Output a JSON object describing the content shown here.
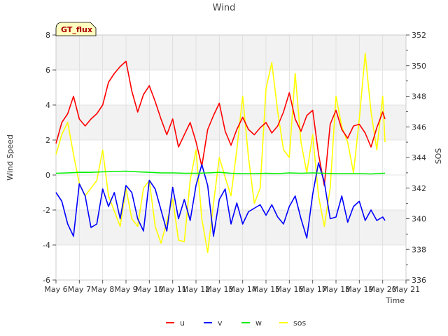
{
  "chart_data": {
    "type": "line",
    "title": "Wind",
    "badge": "GT_flux",
    "xlabel": "Time",
    "ylabel": "Wind Speed",
    "y2label": "SOS",
    "xlim": [
      6,
      21
    ],
    "ylim": [
      -6,
      8
    ],
    "y2lim": [
      336,
      352
    ],
    "x_ticks": [
      {
        "v": 6,
        "label": "May 6"
      },
      {
        "v": 7,
        "label": "May 7"
      },
      {
        "v": 8,
        "label": "May 8"
      },
      {
        "v": 9,
        "label": "May 9"
      },
      {
        "v": 10,
        "label": "May 10"
      },
      {
        "v": 11,
        "label": "May 11"
      },
      {
        "v": 12,
        "label": "May 12"
      },
      {
        "v": 13,
        "label": "May 13"
      },
      {
        "v": 14,
        "label": "May 14"
      },
      {
        "v": 15,
        "label": "May 15"
      },
      {
        "v": 16,
        "label": "May 16"
      },
      {
        "v": 17,
        "label": "May 17"
      },
      {
        "v": 18,
        "label": "May 18"
      },
      {
        "v": 19,
        "label": "May 19"
      },
      {
        "v": 20,
        "label": "May 20"
      },
      {
        "v": 21,
        "label": "May 21"
      }
    ],
    "y_ticks": [
      -6,
      -4,
      -2,
      0,
      2,
      4,
      6,
      8
    ],
    "y_tick_labels": [
      "-6",
      "-4",
      "-2",
      "0",
      "2",
      "4",
      "6",
      "8"
    ],
    "y2_ticks": [
      336,
      338,
      340,
      342,
      344,
      346,
      348,
      350,
      352
    ],
    "y2_tick_labels": [
      "336",
      "338",
      "340",
      "342",
      "344",
      "346",
      "348",
      "350",
      "352"
    ],
    "bands": [
      [
        -4,
        -2
      ],
      [
        2,
        4
      ],
      [
        6,
        8
      ]
    ],
    "grid": true,
    "legend_position": "bottom-center",
    "series": [
      {
        "name": "u",
        "axis": "left",
        "color": "#ff0000",
        "x": [
          6.0,
          6.25,
          6.5,
          6.75,
          7.0,
          7.25,
          7.5,
          7.75,
          8.0,
          8.25,
          8.5,
          8.75,
          9.0,
          9.25,
          9.5,
          9.75,
          10.0,
          10.25,
          10.5,
          10.75,
          11.0,
          11.25,
          11.5,
          11.75,
          12.0,
          12.25,
          12.5,
          12.75,
          13.0,
          13.25,
          13.5,
          13.75,
          14.0,
          14.25,
          14.5,
          14.75,
          15.0,
          15.25,
          15.5,
          15.75,
          16.0,
          16.25,
          16.5,
          16.75,
          17.0,
          17.25,
          17.5,
          17.75,
          18.0,
          18.25,
          18.5,
          18.75,
          19.0,
          19.25,
          19.5,
          19.75,
          20.0,
          20.1
        ],
        "y": [
          1.8,
          3.0,
          3.5,
          4.5,
          3.2,
          2.8,
          3.2,
          3.5,
          4.0,
          5.3,
          5.8,
          6.2,
          6.5,
          4.8,
          3.6,
          4.6,
          5.1,
          4.2,
          3.2,
          2.3,
          3.2,
          1.6,
          2.3,
          3.0,
          1.9,
          0.5,
          2.6,
          3.4,
          4.1,
          2.5,
          1.7,
          2.6,
          3.3,
          2.6,
          2.3,
          2.7,
          3.0,
          2.4,
          2.8,
          3.6,
          4.7,
          3.2,
          2.5,
          3.4,
          3.7,
          1.2,
          -0.6,
          2.9,
          3.7,
          2.6,
          2.1,
          2.8,
          2.9,
          2.4,
          1.6,
          2.7,
          3.6,
          3.2
        ]
      },
      {
        "name": "v",
        "axis": "left",
        "color": "#0000ff",
        "x": [
          6.0,
          6.25,
          6.5,
          6.75,
          7.0,
          7.25,
          7.5,
          7.75,
          8.0,
          8.25,
          8.5,
          8.75,
          9.0,
          9.25,
          9.5,
          9.75,
          10.0,
          10.25,
          10.5,
          10.75,
          11.0,
          11.25,
          11.5,
          11.75,
          12.0,
          12.25,
          12.5,
          12.75,
          13.0,
          13.25,
          13.5,
          13.75,
          14.0,
          14.25,
          14.5,
          14.75,
          15.0,
          15.25,
          15.5,
          15.75,
          16.0,
          16.25,
          16.5,
          16.75,
          17.0,
          17.25,
          17.5,
          17.75,
          18.0,
          18.25,
          18.5,
          18.75,
          19.0,
          19.25,
          19.5,
          19.75,
          20.0,
          20.1
        ],
        "y": [
          -1.0,
          -1.5,
          -2.8,
          -3.5,
          -0.5,
          -1.2,
          -3.0,
          -2.8,
          -0.8,
          -1.8,
          -1.0,
          -2.5,
          -0.6,
          -1.0,
          -2.5,
          -3.2,
          -0.3,
          -0.8,
          -2.0,
          -3.2,
          -0.7,
          -2.5,
          -1.4,
          -2.6,
          -0.6,
          0.6,
          -0.6,
          -3.5,
          -1.4,
          -0.8,
          -2.8,
          -1.6,
          -2.8,
          -2.1,
          -1.9,
          -1.7,
          -2.3,
          -1.7,
          -2.4,
          -2.8,
          -1.8,
          -1.2,
          -2.5,
          -3.6,
          -1.1,
          0.7,
          -0.4,
          -2.5,
          -2.4,
          -1.2,
          -2.7,
          -1.8,
          -1.5,
          -2.6,
          -2.0,
          -2.6,
          -2.4,
          -2.6
        ]
      },
      {
        "name": "w",
        "axis": "left",
        "color": "#00ee00",
        "x": [
          6.0,
          6.5,
          7.0,
          7.5,
          8.0,
          8.5,
          9.0,
          9.5,
          10.0,
          10.5,
          11.0,
          11.5,
          12.0,
          12.5,
          13.0,
          13.5,
          14.0,
          14.5,
          15.0,
          15.5,
          16.0,
          16.5,
          17.0,
          17.5,
          18.0,
          18.5,
          19.0,
          19.5,
          20.0,
          20.1
        ],
        "y": [
          0.1,
          0.12,
          0.15,
          0.15,
          0.18,
          0.2,
          0.22,
          0.18,
          0.15,
          0.12,
          0.12,
          0.1,
          0.1,
          0.12,
          0.15,
          0.1,
          0.08,
          0.08,
          0.1,
          0.08,
          0.12,
          0.1,
          0.12,
          0.1,
          0.08,
          0.08,
          0.08,
          0.06,
          0.1,
          0.1
        ]
      },
      {
        "name": "sos",
        "axis": "right",
        "color": "#ffff00",
        "x": [
          6.0,
          6.25,
          6.5,
          6.75,
          7.0,
          7.25,
          7.5,
          7.75,
          8.0,
          8.25,
          8.5,
          8.75,
          9.0,
          9.25,
          9.5,
          9.75,
          10.0,
          10.25,
          10.5,
          10.75,
          11.0,
          11.25,
          11.5,
          11.75,
          12.0,
          12.25,
          12.5,
          12.75,
          13.0,
          13.25,
          13.5,
          13.75,
          14.0,
          14.25,
          14.5,
          14.75,
          15.0,
          15.25,
          15.5,
          15.75,
          16.0,
          16.25,
          16.5,
          16.75,
          17.0,
          17.25,
          17.5,
          17.75,
          18.0,
          18.25,
          18.5,
          18.75,
          19.0,
          19.25,
          19.5,
          19.75,
          20.0,
          20.1
        ],
        "y": [
          344.2,
          345.5,
          346.3,
          344.2,
          342.3,
          341.5,
          342.0,
          342.5,
          344.5,
          341.5,
          340.5,
          339.5,
          342.0,
          340.0,
          339.5,
          342.0,
          342.5,
          339.5,
          338.4,
          339.8,
          341.3,
          338.6,
          338.5,
          342.5,
          344.5,
          340.0,
          337.8,
          341.0,
          344.0,
          342.7,
          341.5,
          344.5,
          348.0,
          344.0,
          341.0,
          342.0,
          348.5,
          350.2,
          347.0,
          344.5,
          344.0,
          349.5,
          345.0,
          343.0,
          345.5,
          341.5,
          339.5,
          342.0,
          348.0,
          346.0,
          345.0,
          343.0,
          346.5,
          350.8,
          347.0,
          344.5,
          348.0,
          345.0
        ]
      }
    ]
  }
}
